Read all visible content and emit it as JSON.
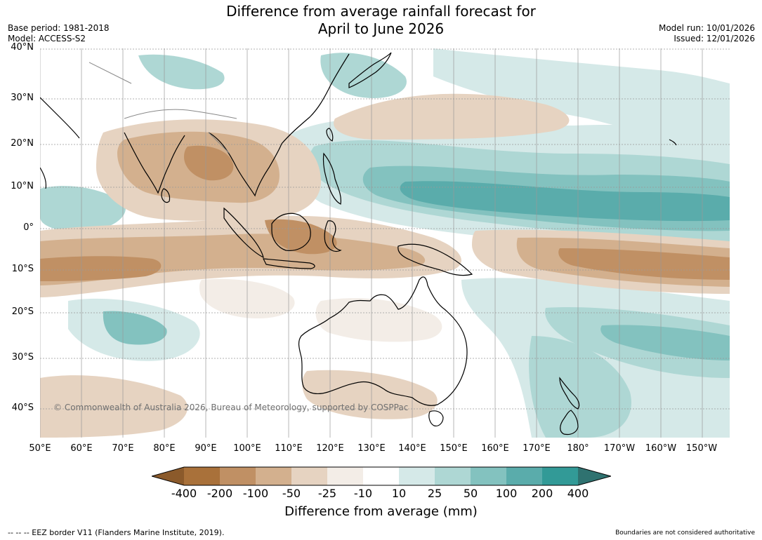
{
  "title_line1": "Difference from average rainfall forecast for",
  "title_line2": "April to June 2026",
  "base_period": "Base period: 1981-2018",
  "model": "Model: ACCESS-S2",
  "model_run": "Model run: 10/01/2026",
  "issued": "Issued: 12/01/2026",
  "lat_labels": [
    "40°N",
    "30°N",
    "20°N",
    "10°N",
    "0°",
    "10°S",
    "20°S",
    "30°S",
    "40°S"
  ],
  "lon_labels": [
    "50°E",
    "60°E",
    "70°E",
    "80°E",
    "90°E",
    "100°E",
    "110°E",
    "120°E",
    "130°E",
    "140°E",
    "150°E",
    "160°E",
    "170°E",
    "180°",
    "170°W",
    "160°W",
    "150°W"
  ],
  "copyright": "© Commonwealth of Australia 2026, Bureau of Meteorology, supported by COSPPac",
  "colorbar": {
    "title": "Difference from average (mm)",
    "tick_labels": [
      "-400",
      "-200",
      "-100",
      "-50",
      "-25",
      "-10",
      "10",
      "25",
      "50",
      "100",
      "200",
      "400"
    ],
    "colors": [
      "#8b5a2b",
      "#a9713a",
      "#c09064",
      "#d3b08e",
      "#e6d3c1",
      "#f3ede7",
      "#ffffff",
      "#d5e9e8",
      "#aed7d4",
      "#83c2bf",
      "#5aacab",
      "#329a97",
      "#2f7270"
    ]
  },
  "footer_left": "--  --  -- EEZ border V11 (Flanders Marine Institute, 2019).",
  "footer_right": "Boundaries are not considered authoritative"
}
